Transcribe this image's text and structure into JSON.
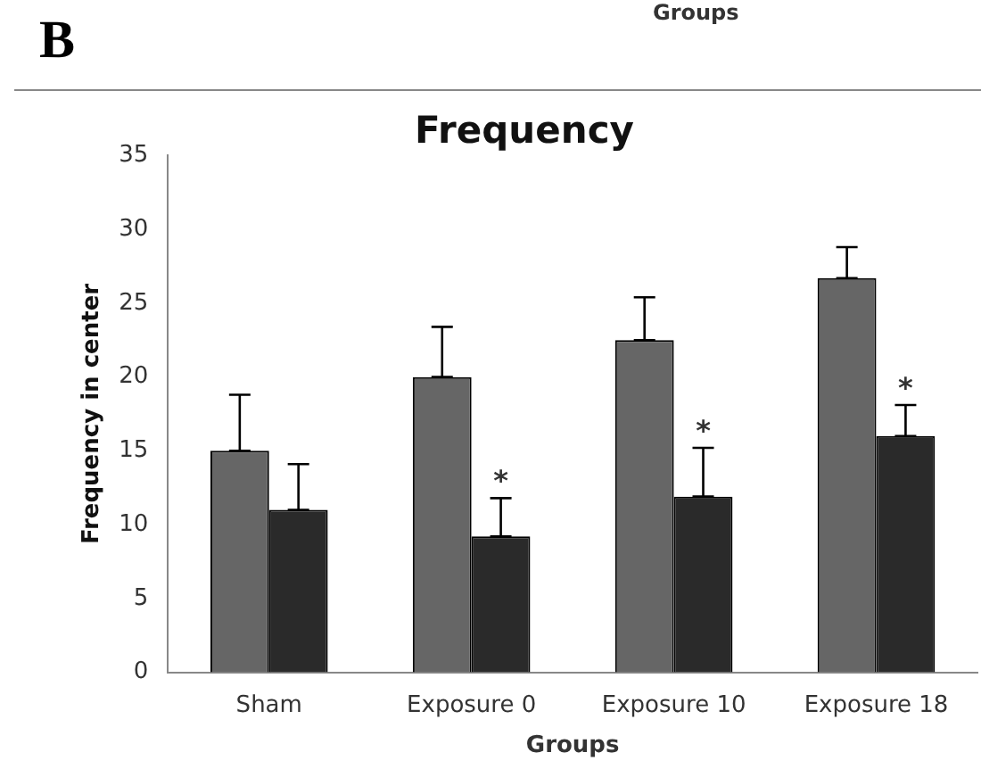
{
  "chart_data": {
    "type": "bar",
    "title": "Frequency",
    "xlabel": "Groups",
    "ylabel": "Frequency in center",
    "categories": [
      "Sham",
      "Exposure 0",
      "Exposure 10",
      "Exposure 18"
    ],
    "series": [
      {
        "color": "#666666",
        "values": [
          15,
          20,
          22.5,
          26.7
        ],
        "errors": [
          [
            15,
            18.8
          ],
          [
            20,
            23.4
          ],
          [
            22.5,
            25.4
          ],
          [
            26.7,
            28.8
          ]
        ]
      },
      {
        "color": "#2a2a2a",
        "values": [
          11,
          9.2,
          11.9,
          16
        ],
        "errors": [
          [
            11,
            14.1
          ],
          [
            9.2,
            11.8
          ],
          [
            11.9,
            15.2
          ],
          [
            16,
            18.1
          ]
        ]
      }
    ],
    "ylim": [
      0,
      35
    ],
    "yticks": [
      0,
      5,
      10,
      15,
      20,
      25,
      30,
      35
    ],
    "grid": false,
    "legend": false,
    "annotations": [
      "B",
      "Groups",
      {
        "text": "*",
        "x": "Exposure 0",
        "y": 12.8
      },
      {
        "text": "*",
        "x": "Exposure 10",
        "y": 16.2
      },
      {
        "text": "*",
        "x": "Exposure 18",
        "y": 19.1
      }
    ]
  }
}
